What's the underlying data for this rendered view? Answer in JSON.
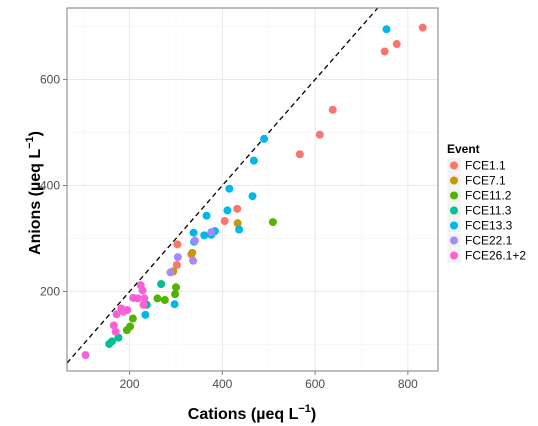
{
  "chart_data": {
    "type": "scatter",
    "xlabel": "Cations (µeq L",
    "ylabel": "Anions (µeq L",
    "unit_exponent": "−1",
    "xlim": [
      65,
      865
    ],
    "ylim": [
      50,
      735
    ],
    "x_ticks": [
      200,
      400,
      600,
      800
    ],
    "y_ticks": [
      200,
      400,
      600
    ],
    "grid": true,
    "reference_line": {
      "style": "dashed",
      "slope": 1,
      "intercept": 0
    },
    "legend": {
      "title": "Event",
      "placement": "right",
      "entries": [
        "FCE1.1",
        "FCE7.1",
        "FCE11.2",
        "FCE11.3",
        "FCE13.3",
        "FCE22.1",
        "FCE26.1+2"
      ]
    },
    "series": [
      {
        "name": "FCE1.1",
        "color": "#F8766D",
        "points": [
          [
            832,
            698
          ],
          [
            776,
            667
          ],
          [
            750,
            653
          ],
          [
            638,
            543
          ],
          [
            610,
            496
          ],
          [
            567,
            459
          ],
          [
            432,
            356
          ],
          [
            405,
            333
          ],
          [
            333,
            270
          ],
          [
            303,
            289
          ],
          [
            302,
            250
          ],
          [
            294,
            238
          ]
        ]
      },
      {
        "name": "FCE7.1",
        "color": "#C49A00",
        "points": [
          [
            433,
            329
          ],
          [
            335,
            273
          ],
          [
            294,
            238
          ],
          [
            268,
            214
          ]
        ]
      },
      {
        "name": "FCE11.2",
        "color": "#53B400",
        "points": [
          [
            509,
            331
          ],
          [
            300,
            208
          ],
          [
            298,
            195
          ],
          [
            276,
            184
          ],
          [
            260,
            187
          ],
          [
            207,
            149
          ],
          [
            201,
            134
          ],
          [
            194,
            127
          ]
        ]
      },
      {
        "name": "FCE11.3",
        "color": "#00C094",
        "points": [
          [
            268,
            214
          ],
          [
            237,
            175
          ],
          [
            176,
            113
          ],
          [
            162,
            106
          ],
          [
            156,
            101
          ]
        ]
      },
      {
        "name": "FCE13.3",
        "color": "#00B6EB",
        "points": [
          [
            754,
            695
          ],
          [
            490,
            488
          ],
          [
            468,
            447
          ],
          [
            465,
            380
          ],
          [
            415,
            394
          ],
          [
            411,
            353
          ],
          [
            384,
            314
          ],
          [
            376,
            307
          ],
          [
            366,
            343
          ],
          [
            361,
            306
          ],
          [
            338,
            311
          ],
          [
            339,
            294
          ],
          [
            436,
            317
          ],
          [
            297,
            176
          ],
          [
            234,
            156
          ]
        ]
      },
      {
        "name": "FCE22.1",
        "color": "#A58AFF",
        "points": [
          [
            376,
            312
          ],
          [
            341,
            296
          ],
          [
            337,
            258
          ],
          [
            304,
            265
          ],
          [
            288,
            236
          ]
        ]
      },
      {
        "name": "FCE26.1+2",
        "color": "#FB61D7",
        "points": [
          [
            105,
            80
          ],
          [
            166,
            136
          ],
          [
            170,
            124
          ],
          [
            172,
            157
          ],
          [
            182,
            168
          ],
          [
            187,
            162
          ],
          [
            195,
            165
          ],
          [
            208,
            188
          ],
          [
            218,
            187
          ],
          [
            224,
            212
          ],
          [
            228,
            202
          ],
          [
            232,
            187
          ],
          [
            230,
            175
          ]
        ]
      }
    ]
  }
}
